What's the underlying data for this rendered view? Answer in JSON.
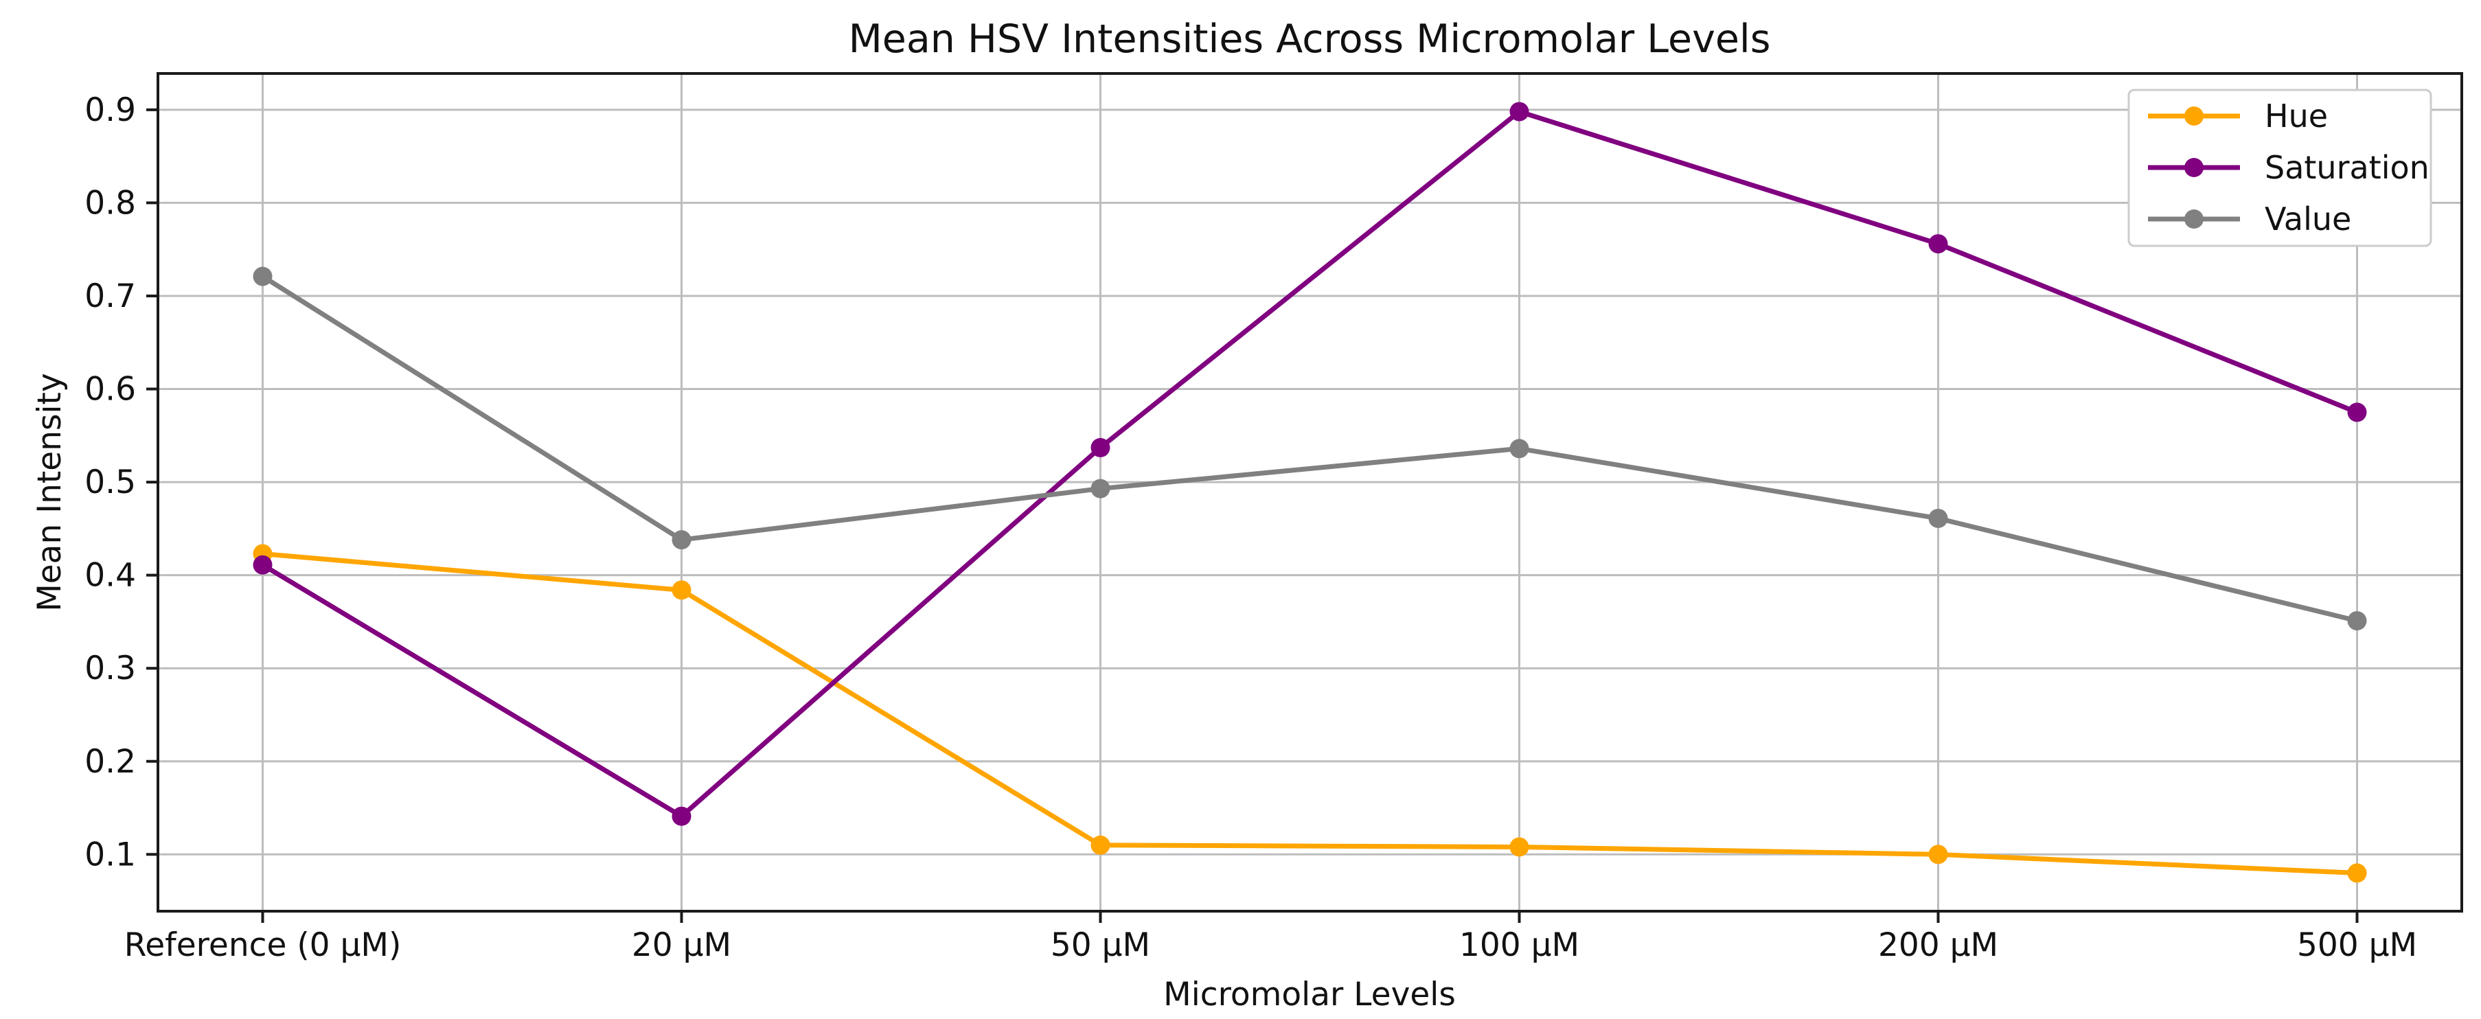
{
  "figure": {
    "title": "Mean HSV Intensities Across Micromolar Levels",
    "xlabel": "Micromolar Levels",
    "ylabel": "Mean Intensity"
  },
  "chart_data": {
    "type": "line",
    "title": "Mean HSV Intensities Across Micromolar Levels",
    "xlabel": "Micromolar Levels",
    "ylabel": "Mean Intensity",
    "categories": [
      "Reference (0 μM)",
      "20 μM",
      "50 μM",
      "100 μM",
      "200 μM",
      "500 μM"
    ],
    "series": [
      {
        "name": "Hue",
        "color": "#FFA500",
        "values": [
          0.423,
          0.384,
          0.11,
          0.108,
          0.1,
          0.08
        ]
      },
      {
        "name": "Saturation",
        "color": "#800080",
        "values": [
          0.411,
          0.141,
          0.537,
          0.898,
          0.756,
          0.575
        ]
      },
      {
        "name": "Value",
        "color": "#808080",
        "values": [
          0.721,
          0.438,
          0.493,
          0.536,
          0.461,
          0.351
        ]
      }
    ],
    "y_ticks": [
      0.1,
      0.2,
      0.3,
      0.4,
      0.5,
      0.6,
      0.7,
      0.8,
      0.9
    ],
    "ylim": [
      0.039,
      0.939
    ],
    "grid": true,
    "legend_position": "upper right",
    "marker": "circle",
    "colors": {
      "grid": "#bdbdbd",
      "spine": "#1a1a1a",
      "background": "#ffffff",
      "legend_border": "#cccccc"
    }
  }
}
